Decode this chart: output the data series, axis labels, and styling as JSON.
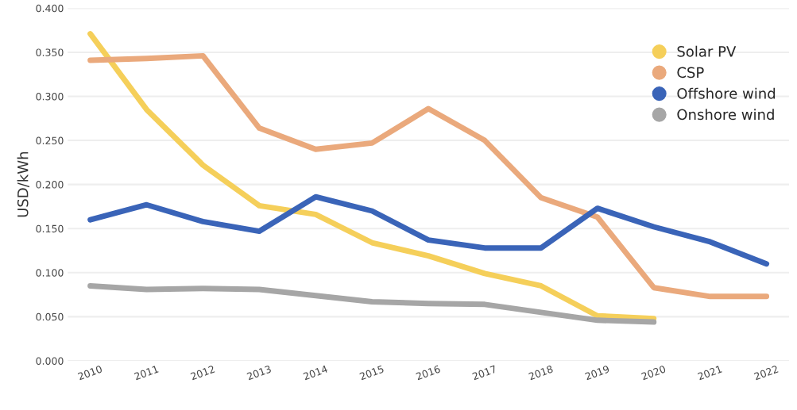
{
  "chart_data": {
    "type": "line",
    "ylabel": "USD/kWh",
    "categories": [
      "2010",
      "2011",
      "2012",
      "2013",
      "2014",
      "2015",
      "2016",
      "2017",
      "2018",
      "2019",
      "2020",
      "2021",
      "2022"
    ],
    "series": [
      {
        "name": "Solar PV",
        "color": "#f5cf5a",
        "values": [
          0.371,
          0.285,
          0.222,
          0.176,
          0.166,
          0.134,
          0.119,
          0.099,
          0.085,
          0.051,
          0.048,
          null,
          null
        ]
      },
      {
        "name": "CSP",
        "color": "#eaa97c",
        "values": [
          0.341,
          0.343,
          0.346,
          0.264,
          0.24,
          0.247,
          0.286,
          0.25,
          0.185,
          0.163,
          0.083,
          0.073,
          0.073
        ]
      },
      {
        "name": "Offshore wind",
        "color": "#3a64b8",
        "values": [
          0.16,
          0.177,
          0.158,
          0.147,
          0.186,
          0.17,
          0.137,
          0.128,
          0.128,
          0.173,
          0.152,
          0.135,
          0.11
        ]
      },
      {
        "name": "Onshore wind",
        "color": "#a6a6a6",
        "values": [
          0.085,
          0.081,
          0.082,
          0.081,
          0.074,
          0.067,
          0.065,
          0.064,
          0.055,
          0.046,
          0.044,
          null,
          null
        ]
      }
    ],
    "ylim": [
      0,
      0.4
    ],
    "yticks": [
      {
        "value": 0,
        "label": "0.000"
      },
      {
        "value": 0.05,
        "label": "0.050"
      },
      {
        "value": 0.1,
        "label": "0.100"
      },
      {
        "value": 0.15,
        "label": "0.150"
      },
      {
        "value": 0.2,
        "label": "0.200"
      },
      {
        "value": 0.25,
        "label": "0.250"
      },
      {
        "value": 0.3,
        "label": "0.300"
      },
      {
        "value": 0.35,
        "label": "0.350"
      },
      {
        "value": 0.4,
        "label": "0.400"
      }
    ],
    "grid": "y",
    "legend": "top right",
    "marker": "none",
    "line_style": "solid"
  }
}
